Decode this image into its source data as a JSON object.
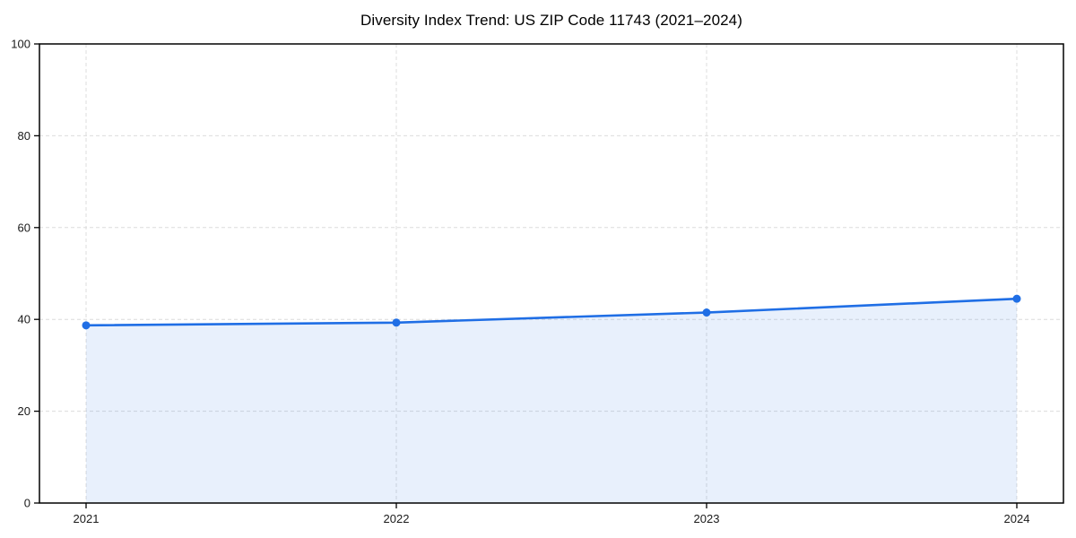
{
  "page": {
    "background": "#ffffff"
  },
  "chart_data": {
    "type": "area",
    "title": "Diversity Index Trend: US ZIP Code 11743 (2021–2024)",
    "xlabel": "",
    "ylabel": "",
    "x": [
      2021,
      2022,
      2023,
      2024
    ],
    "xtick_labels": [
      "2021",
      "2022",
      "2023",
      "2024"
    ],
    "series": [
      {
        "name": "Diversity Index",
        "values": [
          38.7,
          39.3,
          41.5,
          44.5
        ]
      }
    ],
    "ylim": [
      0,
      100
    ],
    "yticks": [
      0,
      20,
      40,
      60,
      80,
      100
    ],
    "ytick_labels": [
      "0",
      "20",
      "40",
      "60",
      "80",
      "100"
    ],
    "grid": "on",
    "legend_position": "none",
    "marker": "circle",
    "colors": {
      "line": "#1f6ee5",
      "marker": "#1f6ee5",
      "area_fill": "#1f6ee5",
      "area_fill_opacity": 0.1,
      "grid": "#dcdcdc",
      "axis_box": "#000000",
      "tick_label": "#1a1a1a",
      "title": "#000000"
    }
  }
}
